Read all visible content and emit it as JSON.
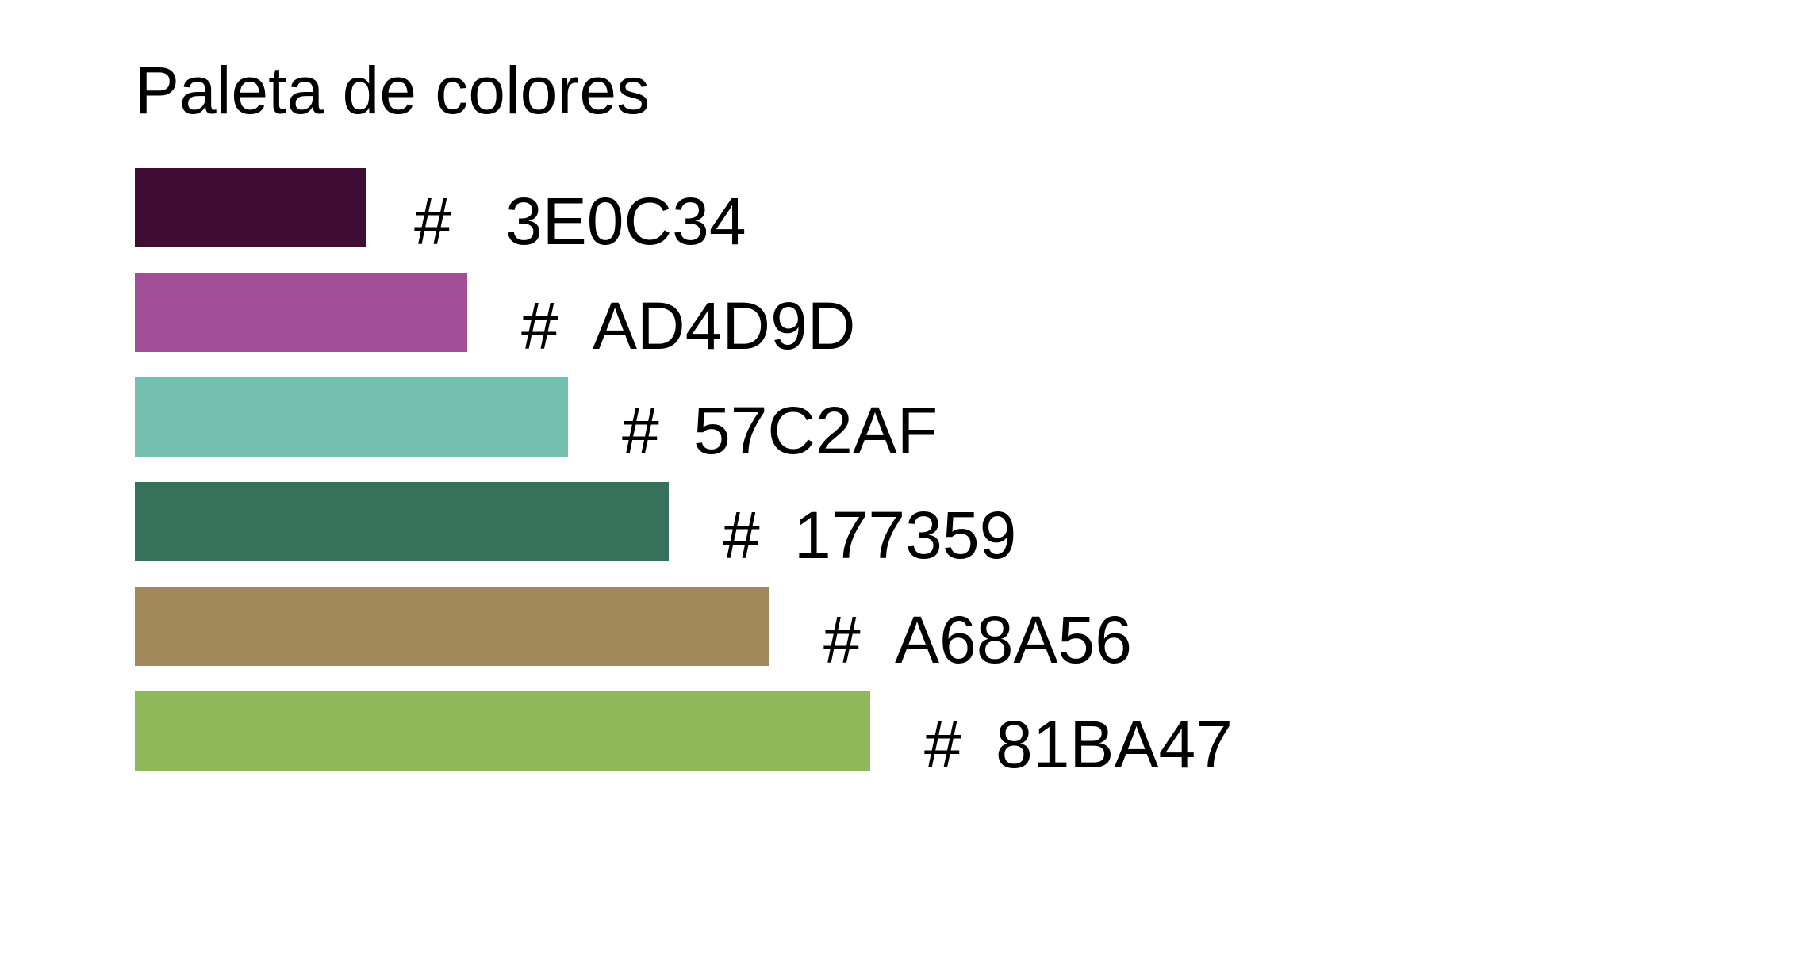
{
  "chart_data": {
    "type": "bar",
    "orientation": "horizontal",
    "title": "Paleta de colores",
    "categories": [
      "3E0C34",
      "AD4D9D",
      "57C2AF",
      "177359",
      "A68A56",
      "81BA47"
    ],
    "values": [
      1,
      2,
      3,
      4,
      5,
      6
    ],
    "colors": [
      "#3E0C34",
      "#A04F96",
      "#75BFB0",
      "#36715B",
      "#A2895C",
      "#8EB85A"
    ],
    "labels": [
      {
        "hash": "#",
        "code": "3E0C34"
      },
      {
        "hash": "#",
        "code": "AD4D9D"
      },
      {
        "hash": "#",
        "code": "57C2AF"
      },
      {
        "hash": "#",
        "code": "177359"
      },
      {
        "hash": "#",
        "code": "A68A56"
      },
      {
        "hash": "#",
        "code": "81BA47"
      }
    ],
    "xlabel": "",
    "ylabel": "",
    "grid": false,
    "axes_visible": false
  }
}
